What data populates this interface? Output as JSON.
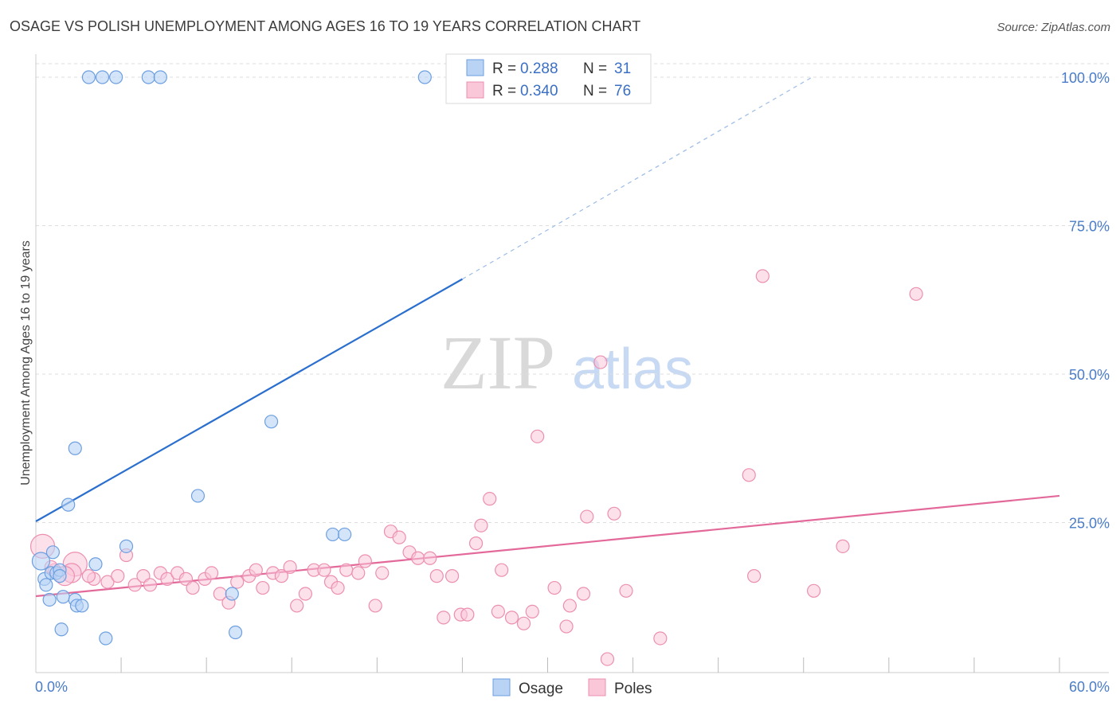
{
  "title": "OSAGE VS POLISH UNEMPLOYMENT AMONG AGES 16 TO 19 YEARS CORRELATION CHART",
  "source": "Source: ZipAtlas.com",
  "watermark": {
    "zip": "ZIP",
    "atlas": "atlas"
  },
  "colors": {
    "osage_fill": "#b9d3f5",
    "osage_stroke": "#6d9fe0",
    "osage_line": "#2a6fce",
    "poles_fill": "#f9c7d8",
    "poles_stroke": "#ec8fb0",
    "poles_line": "#e3699a",
    "tick_text": "#4a7cc9",
    "grid": "#dddddd"
  },
  "legend": {
    "rows": [
      {
        "r_label": "R =",
        "r_value": "0.288",
        "n_label": "N =",
        "n_value": "31"
      },
      {
        "r_label": "R =",
        "r_value": "0.340",
        "n_label": "N =",
        "n_value": "76"
      }
    ]
  },
  "bottom_legend": [
    "Osage",
    "Poles"
  ],
  "chart_data": {
    "type": "scatter",
    "title": "OSAGE VS POLISH UNEMPLOYMENT AMONG AGES 16 TO 19 YEARS CORRELATION CHART",
    "xlabel": "",
    "ylabel": "Unemployment Among Ages 16 to 19 years",
    "xlim": [
      0,
      60
    ],
    "ylim": [
      0,
      100
    ],
    "x_tick_labels": [
      "0.0%",
      "60.0%"
    ],
    "y_ticks": [
      25,
      50,
      75,
      100
    ],
    "y_tick_labels": [
      "25.0%",
      "50.0%",
      "75.0%",
      "100.0%"
    ],
    "grid": true,
    "legend_position": "top-center",
    "series": [
      {
        "name": "Osage",
        "r": 0.288,
        "n": 31,
        "trend": {
          "x0": 0,
          "y0": 25.2,
          "x1": 25,
          "y1": 66,
          "dash_to_x": 45.5,
          "dash_to_y": 100
        },
        "points": [
          [
            3.1,
            100
          ],
          [
            3.9,
            100
          ],
          [
            4.7,
            100
          ],
          [
            6.6,
            100
          ],
          [
            7.3,
            100
          ],
          [
            22.8,
            100
          ],
          [
            0.3,
            18.5
          ],
          [
            0.5,
            15.5
          ],
          [
            0.6,
            14.5
          ],
          [
            0.9,
            16.5
          ],
          [
            1.0,
            20
          ],
          [
            1.2,
            16.5
          ],
          [
            1.4,
            17
          ],
          [
            1.6,
            12.5
          ],
          [
            1.4,
            16
          ],
          [
            0.8,
            12
          ],
          [
            2.3,
            12
          ],
          [
            2.4,
            11
          ],
          [
            1.5,
            7
          ],
          [
            1.9,
            28
          ],
          [
            2.3,
            37.5
          ],
          [
            2.7,
            11
          ],
          [
            3.5,
            18
          ],
          [
            5.3,
            21
          ],
          [
            4.1,
            5.5
          ],
          [
            9.5,
            29.5
          ],
          [
            11.5,
            13
          ],
          [
            11.7,
            6.5
          ],
          [
            13.8,
            42
          ],
          [
            17.4,
            23
          ],
          [
            18.1,
            23
          ]
        ]
      },
      {
        "name": "Poles",
        "r": 0.34,
        "n": 76,
        "trend": {
          "x0": 0,
          "y0": 12.6,
          "x1": 60,
          "y1": 29.5
        },
        "points": [
          [
            0.4,
            21
          ],
          [
            1.1,
            17
          ],
          [
            2.3,
            18
          ],
          [
            2.1,
            16.5
          ],
          [
            3.4,
            15.5
          ],
          [
            3.1,
            16
          ],
          [
            4.2,
            15
          ],
          [
            4.8,
            16
          ],
          [
            5.3,
            19.5
          ],
          [
            5.8,
            14.5
          ],
          [
            6.3,
            16
          ],
          [
            6.7,
            14.5
          ],
          [
            7.3,
            16.5
          ],
          [
            7.7,
            15.5
          ],
          [
            8.3,
            16.5
          ],
          [
            8.8,
            15.5
          ],
          [
            9.2,
            14
          ],
          [
            9.9,
            15.5
          ],
          [
            10.3,
            16.5
          ],
          [
            10.8,
            13
          ],
          [
            11.3,
            11.5
          ],
          [
            11.8,
            15
          ],
          [
            12.5,
            16
          ],
          [
            12.9,
            17
          ],
          [
            13.3,
            14
          ],
          [
            13.9,
            16.5
          ],
          [
            14.4,
            16
          ],
          [
            14.9,
            17.5
          ],
          [
            15.3,
            11
          ],
          [
            15.8,
            13
          ],
          [
            16.3,
            17
          ],
          [
            16.9,
            17
          ],
          [
            17.3,
            15
          ],
          [
            17.7,
            14
          ],
          [
            18.2,
            17
          ],
          [
            18.9,
            16.5
          ],
          [
            19.3,
            18.5
          ],
          [
            19.9,
            11
          ],
          [
            20.3,
            16.5
          ],
          [
            20.8,
            23.5
          ],
          [
            21.3,
            22.5
          ],
          [
            21.9,
            20
          ],
          [
            22.4,
            19
          ],
          [
            23.1,
            19
          ],
          [
            23.5,
            16
          ],
          [
            23.9,
            9
          ],
          [
            24.4,
            16
          ],
          [
            24.9,
            9.5
          ],
          [
            25.3,
            9.5
          ],
          [
            25.8,
            21.5
          ],
          [
            26.1,
            24.5
          ],
          [
            26.6,
            29
          ],
          [
            27.1,
            10
          ],
          [
            27.3,
            17
          ],
          [
            27.9,
            9
          ],
          [
            28.6,
            8
          ],
          [
            29.4,
            39.5
          ],
          [
            29.1,
            10
          ],
          [
            30.4,
            14
          ],
          [
            31.1,
            7.5
          ],
          [
            31.3,
            11
          ],
          [
            32.1,
            13
          ],
          [
            32.3,
            26
          ],
          [
            33.1,
            52
          ],
          [
            33.5,
            2
          ],
          [
            33.9,
            26.5
          ],
          [
            34.6,
            13.5
          ],
          [
            36.6,
            5.5
          ],
          [
            41.8,
            33
          ],
          [
            42.1,
            16
          ],
          [
            42.6,
            66.5
          ],
          [
            45.6,
            13.5
          ],
          [
            47.3,
            21
          ],
          [
            51.6,
            63.5
          ],
          [
            1.7,
            16
          ],
          [
            0.9,
            17.5
          ]
        ]
      }
    ]
  }
}
